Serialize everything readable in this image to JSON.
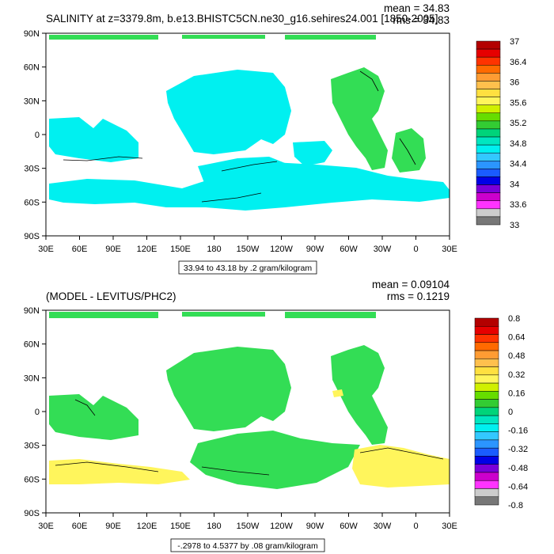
{
  "chart_data": [
    {
      "type": "map",
      "title": "SALINITY at z=3379.8m, b.e13.BHISTC5CN.ne30_g16.sehires24.001 [1850-2005]",
      "stats": [
        "mean = 34.83",
        "rms = 34.83"
      ],
      "caption": "33.94 to 43.18 by .2 gram/kilogram",
      "x_ticks": [
        "30E",
        "60E",
        "90E",
        "120E",
        "150E",
        "180",
        "150W",
        "120W",
        "90W",
        "60W",
        "30W",
        "0",
        "30E"
      ],
      "y_ticks": [
        "90N",
        "60N",
        "30N",
        "0",
        "30S",
        "60S",
        "90S"
      ],
      "colorbar": {
        "labels": [
          "37",
          "36.4",
          "36",
          "35.6",
          "35.2",
          "34.8",
          "34.4",
          "34",
          "33.6",
          "33"
        ],
        "colors": [
          "#b30000",
          "#e60000",
          "#ff3300",
          "#ff6a00",
          "#ff9c33",
          "#ffc04d",
          "#ffe040",
          "#fff55c",
          "#d0f000",
          "#66dd00",
          "#33cc33",
          "#00d47a",
          "#00e6c0",
          "#00f0f0",
          "#33c8ff",
          "#2b95ff",
          "#1a5cff",
          "#0000e6",
          "#7a00d9",
          "#cc00cc",
          "#ff33ff",
          "#cccccc",
          "#777777"
        ]
      }
    },
    {
      "type": "map",
      "title": "(MODEL - LEVITUS/PHC2)",
      "stats": [
        "mean = 0.09104",
        "rms = 0.1219"
      ],
      "caption": "-.2978 to 4.5377 by .08 gram/kilogram",
      "x_ticks": [
        "30E",
        "60E",
        "90E",
        "120E",
        "150E",
        "180",
        "150W",
        "120W",
        "90W",
        "60W",
        "30W",
        "0",
        "30E"
      ],
      "y_ticks": [
        "90N",
        "60N",
        "30N",
        "0",
        "30S",
        "60S",
        "90S"
      ],
      "colorbar": {
        "labels": [
          "0.8",
          "0.64",
          "0.48",
          "0.32",
          "0.16",
          "0",
          "-0.16",
          "-0.32",
          "-0.48",
          "-0.64",
          "-0.8"
        ],
        "colors": [
          "#b30000",
          "#e60000",
          "#ff3300",
          "#ff6a00",
          "#ff9c33",
          "#ffc04d",
          "#ffe040",
          "#fff55c",
          "#d0f000",
          "#66dd00",
          "#33cc33",
          "#00d47a",
          "#00e6c0",
          "#00f0f0",
          "#33c8ff",
          "#2b95ff",
          "#1a5cff",
          "#0000e6",
          "#7a00d9",
          "#cc00cc",
          "#ff33ff",
          "#cccccc",
          "#777777"
        ]
      }
    }
  ]
}
